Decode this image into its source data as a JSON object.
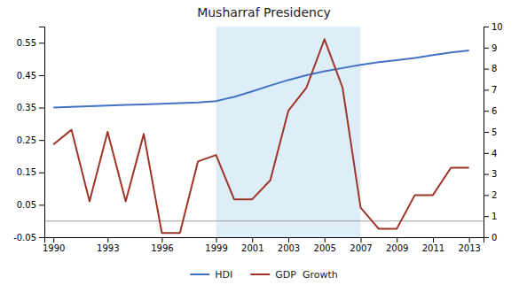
{
  "chart_data": {
    "type": "line",
    "title": "Musharraf Presidency",
    "x": [
      1990,
      1991,
      1992,
      1993,
      1994,
      1995,
      1996,
      1997,
      1998,
      1999,
      2000,
      2001,
      2002,
      2003,
      2004,
      2005,
      2006,
      2007,
      2008,
      2009,
      2010,
      2011,
      2012,
      2013
    ],
    "series": [
      {
        "name": "HDI",
        "color": "#4472C4",
        "values": [
          0.35,
          0.352,
          0.354,
          0.356,
          0.358,
          0.36,
          0.362,
          0.364,
          0.366,
          0.37,
          0.383,
          0.4,
          0.418,
          0.435,
          0.45,
          0.462,
          0.472,
          0.482,
          0.49,
          0.496,
          0.503,
          0.512,
          0.52,
          0.526
        ]
      },
      {
        "name": "GDP  Growth",
        "color": "#9E3528",
        "axis": "y2",
        "values": [
          4.4,
          5.1,
          1.7,
          5.0,
          1.7,
          4.9,
          0.2,
          0.2,
          3.6,
          3.9,
          1.8,
          1.8,
          2.7,
          6.0,
          7.1,
          9.4,
          7.1,
          1.4,
          0.4,
          0.4,
          2.0,
          2.0,
          3.3,
          3.3
        ]
      }
    ],
    "spans": [
      {
        "start": 1999,
        "end": 2007,
        "color": "#DDEEF8"
      }
    ],
    "hlines": [
      {
        "y": 0,
        "color": "#888888"
      }
    ],
    "xlim": [
      1989.5,
      2013.8
    ],
    "xticks": [
      1990,
      1993,
      1996,
      1999,
      2001,
      2003,
      2005,
      2007,
      2009,
      2011,
      2013
    ],
    "ylim": [
      -0.05,
      0.6
    ],
    "yticks": [
      -0.05,
      0.05,
      0.15,
      0.25,
      0.35,
      0.45,
      0.55
    ],
    "y2lim": [
      0,
      10
    ],
    "y2ticks": [
      0,
      1,
      2,
      3,
      4,
      5,
      6,
      7,
      8,
      9,
      10
    ],
    "grid": false,
    "legend": "bottom"
  }
}
